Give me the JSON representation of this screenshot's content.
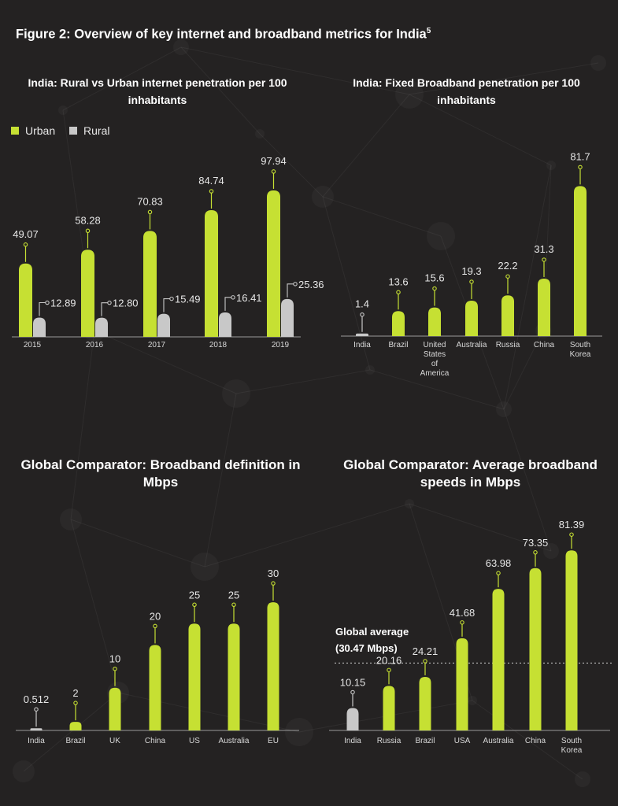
{
  "figure_title": "Figure 2: Overview of key internet and broadband metrics for India",
  "figure_title_sup": "5",
  "colors": {
    "accent": "#c6e033",
    "rural": "#c8c8c8",
    "background": "#242222",
    "text": "#ffffff",
    "label": "#dddddd"
  },
  "chart_data": [
    {
      "type": "bar",
      "title": "India: Rural vs Urban internet penetration per 100 inhabitants",
      "categories": [
        "2015",
        "2016",
        "2017",
        "2018",
        "2019"
      ],
      "series": [
        {
          "name": "Urban",
          "values": [
            49.07,
            58.28,
            70.83,
            84.74,
            97.94
          ]
        },
        {
          "name": "Rural",
          "values": [
            12.89,
            12.8,
            15.49,
            16.41,
            25.36
          ]
        }
      ],
      "value_labels": {
        "Urban": [
          "49.07",
          "58.28",
          "70.83",
          "84.74",
          "97.94"
        ],
        "Rural": [
          "12.89",
          "12.80",
          "15.49",
          "16.41",
          "25.36"
        ]
      },
      "legend": "top-left",
      "ylim": [
        0,
        100
      ]
    },
    {
      "type": "bar",
      "title": "India: Fixed Broadband penetration per 100 inhabitants",
      "categories": [
        "India",
        "Brazil",
        "United States of America",
        "Australia",
        "Russia",
        "China",
        "South Korea"
      ],
      "values": [
        1.4,
        13.6,
        15.6,
        19.3,
        22.2,
        31.3,
        81.7
      ],
      "value_labels": [
        "1.4",
        "13.6",
        "15.6",
        "19.3",
        "22.2",
        "31.3",
        "81.7"
      ],
      "ylim": [
        0,
        90
      ]
    },
    {
      "type": "bar",
      "title": "Global Comparator: Broadband definition in Mbps",
      "categories": [
        "India",
        "Brazil",
        "UK",
        "China",
        "US",
        "Australia",
        "EU"
      ],
      "values": [
        0.512,
        2,
        10,
        20,
        25,
        25,
        30
      ],
      "value_labels": [
        "0.512",
        "2",
        "10",
        "20",
        "25",
        "25",
        "30"
      ],
      "ylim": [
        0,
        35
      ]
    },
    {
      "type": "bar",
      "title": "Global Comparator: Average broadband speeds in Mbps",
      "categories": [
        "India",
        "Russia",
        "Brazil",
        "USA",
        "Australia",
        "China",
        "South Korea"
      ],
      "values": [
        10.15,
        20.16,
        24.21,
        41.68,
        63.98,
        73.35,
        81.39
      ],
      "value_labels": [
        "10.15",
        "20.16",
        "24.21",
        "41.68",
        "63.98",
        "73.35",
        "81.39"
      ],
      "reference_line": {
        "value": 30.47,
        "label": "Global average",
        "sublabel": "(30.47 Mbps)"
      },
      "ylim": [
        0,
        90
      ]
    }
  ]
}
